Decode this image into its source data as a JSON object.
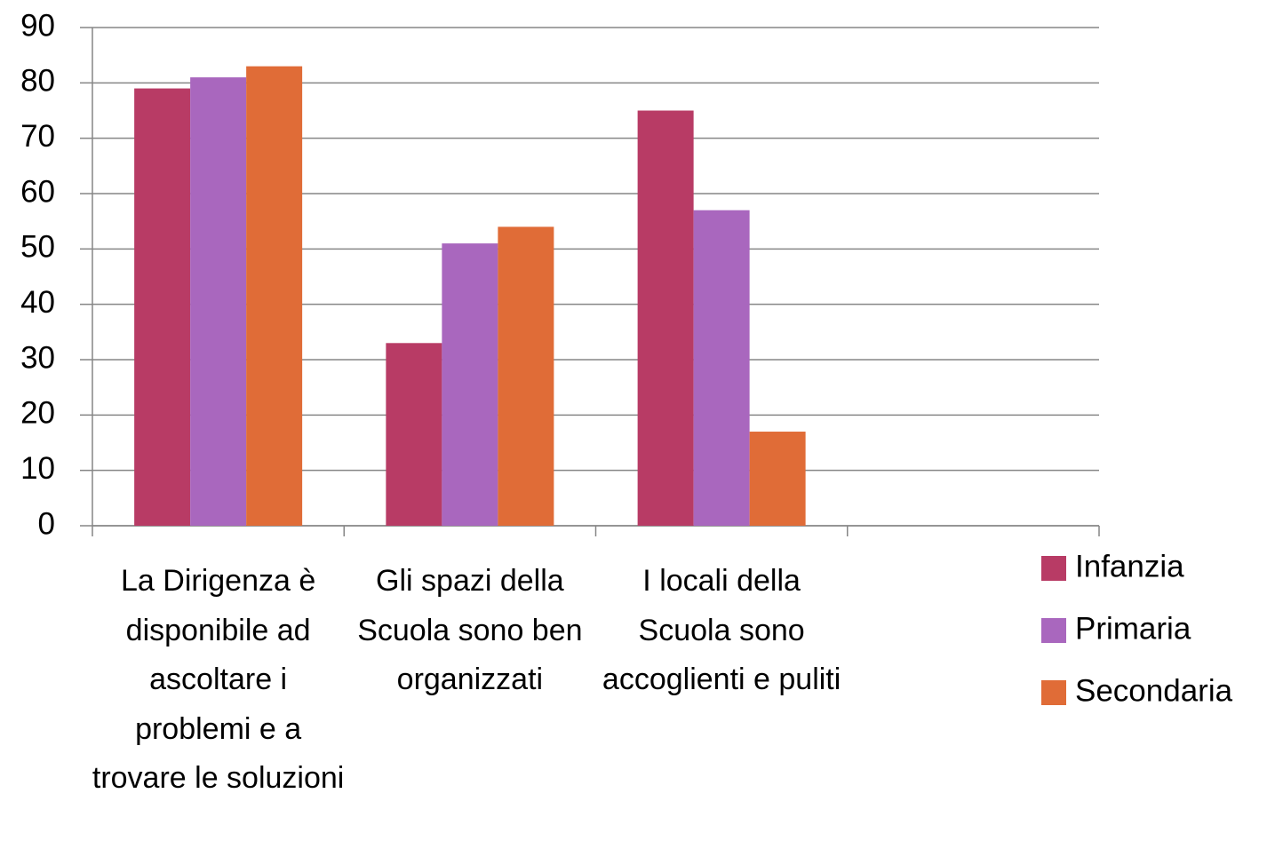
{
  "chart_data": {
    "type": "bar",
    "categories": [
      "La Dirigenza è disponibile ad ascoltare i problemi e a trovare le soluzioni",
      "Gli spazi della Scuola sono ben organizzati",
      "I locali della Scuola sono accoglienti e puliti",
      null
    ],
    "series": [
      {
        "name": "Infanzia",
        "color": "#b83b65",
        "values": [
          79,
          33,
          75,
          null
        ]
      },
      {
        "name": "Primaria",
        "color": "#a967be",
        "values": [
          81,
          51,
          57,
          null
        ]
      },
      {
        "name": "Secondaria",
        "color": "#e06c37",
        "values": [
          83,
          54,
          17,
          null
        ]
      }
    ],
    "ylim": [
      0,
      90
    ],
    "yticks": [
      0,
      10,
      20,
      30,
      40,
      50,
      60,
      70,
      80,
      90
    ],
    "grid": true,
    "legend": "right"
  }
}
